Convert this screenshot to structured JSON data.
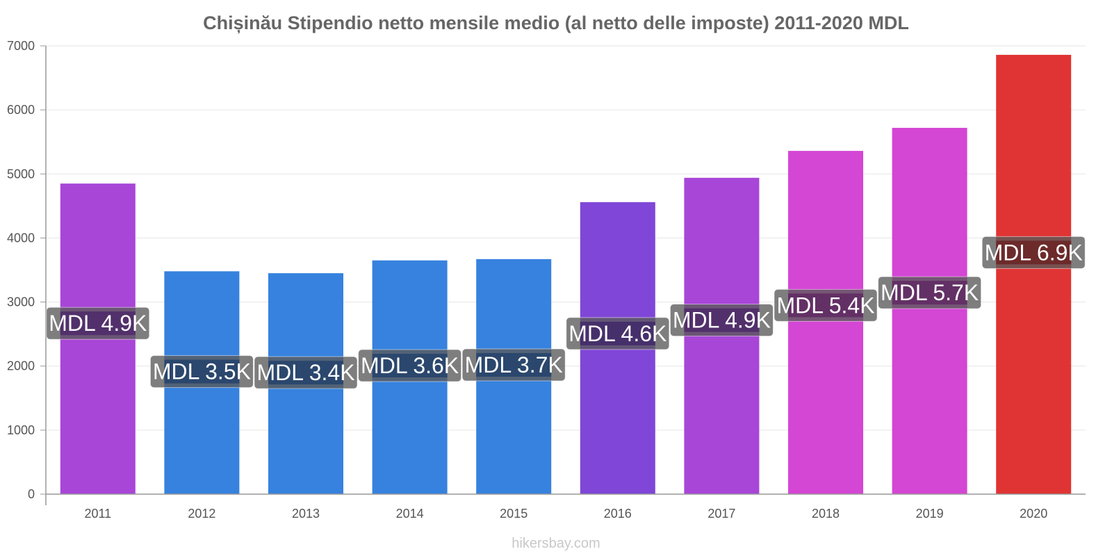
{
  "chart_data": {
    "type": "bar",
    "title": "Chișinău Stipendio netto mensile medio (al netto delle imposte) 2011-2020 MDL",
    "categories": [
      "2011",
      "2012",
      "2013",
      "2014",
      "2015",
      "2016",
      "2017",
      "2018",
      "2019",
      "2020"
    ],
    "values": [
      4850,
      3480,
      3450,
      3650,
      3670,
      4560,
      4940,
      5360,
      5720,
      6860
    ],
    "data_labels": [
      "MDL 4.9K",
      "MDL 3.5K",
      "MDL 3.4K",
      "MDL 3.6K",
      "MDL 3.7K",
      "MDL 4.6K",
      "MDL 4.9K",
      "MDL 5.4K",
      "MDL 5.7K",
      "MDL 6.9K"
    ],
    "bar_colors": [
      "#a846d8",
      "#3682de",
      "#3682de",
      "#3682de",
      "#3682de",
      "#8046d8",
      "#a846d8",
      "#d446d4",
      "#d446d4",
      "#e03434"
    ],
    "label_shades": [
      "#4a2468",
      "#1f3f6a",
      "#1f3f6a",
      "#1f3f6a",
      "#1f3f6a",
      "#3e2468",
      "#4a2468",
      "#5e2460",
      "#5e2460",
      "#6a1e1e"
    ],
    "y_ticks": [
      0,
      1000,
      2000,
      3000,
      4000,
      5000,
      6000,
      7000
    ],
    "ylim": [
      0,
      7000
    ],
    "xlabel": "",
    "ylabel": "",
    "grid": true,
    "watermark": "hikersbay.com"
  }
}
